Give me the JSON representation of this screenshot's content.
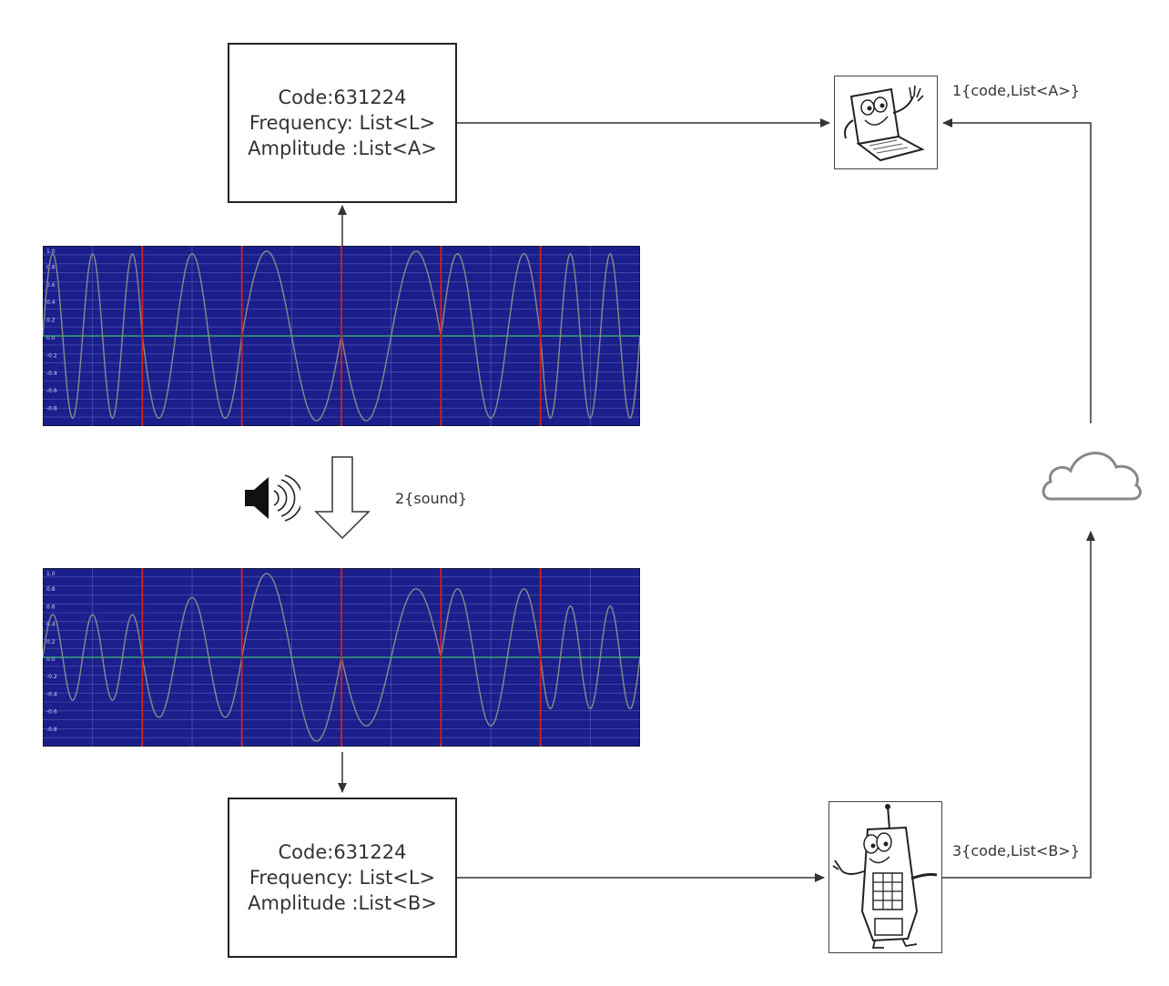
{
  "top_box": {
    "code": "Code:631224",
    "frequency": "Frequency: List<L>",
    "amplitude": "Amplitude :List<A>"
  },
  "bottom_box": {
    "code": "Code:631224",
    "frequency": "Frequency: List<L>",
    "amplitude": "Amplitude :List<B>"
  },
  "labels": {
    "step1": "1{code,List<A>}",
    "step2": "2{sound}",
    "step3": "3{code,List<B>}"
  },
  "waveform_top": {
    "y_ticks": [
      "1.0",
      "0.8",
      "0.6",
      "0.4",
      "0.2",
      "0.0",
      "-0.2",
      "-0.4",
      "-0.6",
      "-0.8"
    ]
  },
  "waveform_bottom": {
    "y_ticks": [
      "1.0",
      "0.8",
      "0.6",
      "0.4",
      "0.2",
      "0.0",
      "-0.2",
      "-0.4",
      "-0.6",
      "-0.8"
    ]
  },
  "icons": {
    "speaker": "speaker-icon",
    "cloud": "cloud-icon",
    "laptop": "laptop-icon",
    "phone": "phone-icon"
  },
  "colors": {
    "scope_background": "#1a1f8c",
    "divider": "#d42020",
    "baseline": "#3fbf6f",
    "wave": "#8a8a8a"
  }
}
